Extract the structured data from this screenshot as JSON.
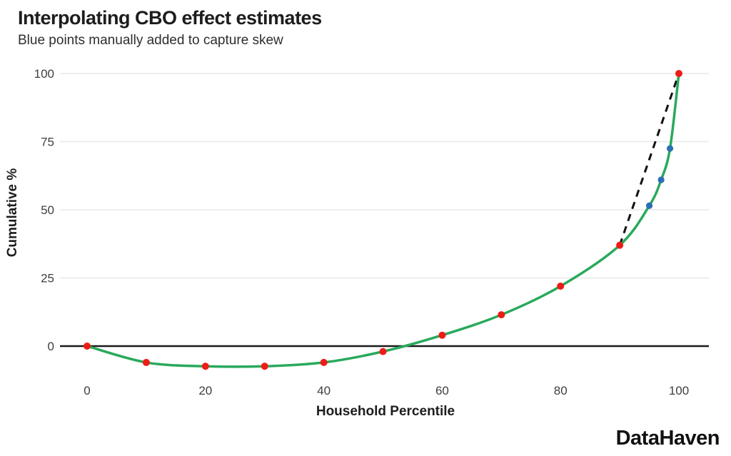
{
  "header": {
    "title": "Interpolating CBO effect estimates",
    "subtitle": "Blue points manually added to capture skew"
  },
  "footer": {
    "brand": "DataHaven"
  },
  "chart_data": {
    "type": "line",
    "title": "Interpolating CBO effect estimates",
    "subtitle": "Blue points manually added to capture skew",
    "xlabel": "Household Percentile",
    "ylabel": "Cumulative %",
    "x_ticks": [
      0,
      20,
      40,
      60,
      80,
      100
    ],
    "y_ticks": [
      0,
      25,
      50,
      75,
      100
    ],
    "xlim": [
      -4,
      105
    ],
    "ylim": [
      -10,
      100
    ],
    "grid": "horizontal-only",
    "legend": "none",
    "gridline_color": "#e8e8e8",
    "zero_line_color": "#1a1a1a",
    "tick_label_color": "#3f3f3f",
    "series": [
      {
        "name": "interpolated-curve",
        "type": "smooth_line",
        "color": "#29a95c",
        "width": 3.5,
        "points": [
          [
            0,
            0
          ],
          [
            10,
            -6
          ],
          [
            20,
            -7.4
          ],
          [
            30,
            -7.4
          ],
          [
            40,
            -6
          ],
          [
            50,
            -2
          ],
          [
            60,
            4
          ],
          [
            70,
            11.5
          ],
          [
            80,
            22
          ],
          [
            90,
            37
          ],
          [
            95,
            51.5
          ],
          [
            97,
            61
          ],
          [
            98.5,
            72.5
          ],
          [
            100,
            100
          ]
        ]
      },
      {
        "name": "linear-reference",
        "type": "dashed_line",
        "color": "#111111",
        "width": 3,
        "dash": "10 8",
        "points": [
          [
            90,
            37
          ],
          [
            100,
            100
          ]
        ]
      },
      {
        "name": "cbo-effect-estimates",
        "type": "scatter",
        "color": "#ed1c16",
        "radius": 5,
        "points": [
          [
            0,
            0
          ],
          [
            10,
            -6
          ],
          [
            20,
            -7.4
          ],
          [
            30,
            -7.4
          ],
          [
            40,
            -6
          ],
          [
            50,
            -2
          ],
          [
            60,
            4
          ],
          [
            70,
            11.5
          ],
          [
            80,
            22
          ],
          [
            90,
            37
          ],
          [
            100,
            100
          ]
        ]
      },
      {
        "name": "manually-added-skew-points",
        "type": "scatter",
        "color": "#2b6fb5",
        "radius": 4.6,
        "points": [
          [
            95,
            51.5
          ],
          [
            97,
            61
          ],
          [
            98.5,
            72.5
          ]
        ]
      }
    ]
  }
}
